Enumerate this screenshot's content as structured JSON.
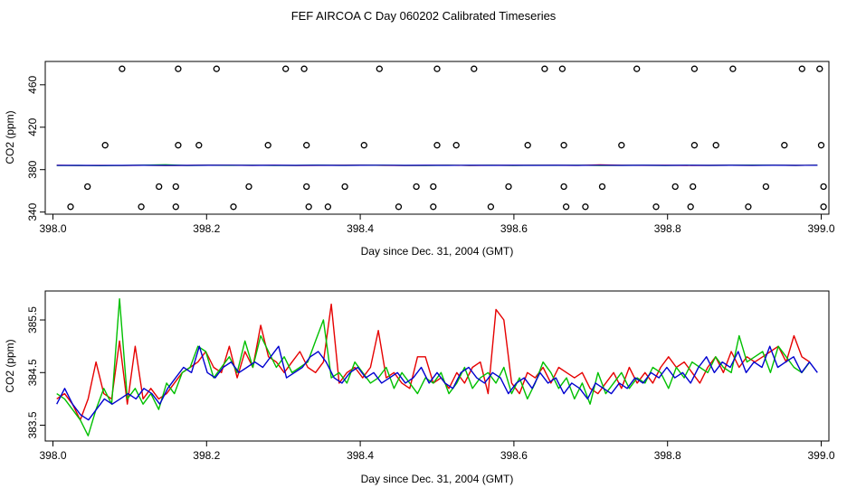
{
  "title": "FEF AIRCOA C  Day 060202  Calibrated Timeseries",
  "colors": {
    "red": "#e60000",
    "green": "#00c000",
    "blue": "#0000d0",
    "black": "#000000"
  },
  "chart_data": [
    {
      "type": "scatter",
      "xlabel": "Day since Dec. 31, 2004 (GMT)",
      "ylabel": "CO2 (ppm)",
      "xlim": [
        397.99,
        399.01
      ],
      "ylim": [
        338,
        482
      ],
      "xticks": [
        398.0,
        398.2,
        398.4,
        398.6,
        398.8,
        399.0
      ],
      "xtick_labels": [
        "398.0",
        "398.2",
        "398.4",
        "398.6",
        "398.8",
        "399.0"
      ],
      "yticks": [
        340,
        380,
        420,
        460
      ],
      "ytick_labels": [
        "340",
        "380",
        "420",
        "460"
      ],
      "points": [
        {
          "x": 398.09,
          "y": 475
        },
        {
          "x": 398.163,
          "y": 475
        },
        {
          "x": 398.213,
          "y": 475
        },
        {
          "x": 398.303,
          "y": 475
        },
        {
          "x": 398.327,
          "y": 475
        },
        {
          "x": 398.425,
          "y": 475
        },
        {
          "x": 398.5,
          "y": 475
        },
        {
          "x": 398.548,
          "y": 475
        },
        {
          "x": 398.64,
          "y": 475
        },
        {
          "x": 398.663,
          "y": 475
        },
        {
          "x": 398.76,
          "y": 475
        },
        {
          "x": 398.835,
          "y": 475
        },
        {
          "x": 398.885,
          "y": 475
        },
        {
          "x": 398.975,
          "y": 475
        },
        {
          "x": 398.998,
          "y": 475
        },
        {
          "x": 398.068,
          "y": 403
        },
        {
          "x": 398.163,
          "y": 403
        },
        {
          "x": 398.19,
          "y": 403
        },
        {
          "x": 398.28,
          "y": 403
        },
        {
          "x": 398.33,
          "y": 403
        },
        {
          "x": 398.405,
          "y": 403
        },
        {
          "x": 398.5,
          "y": 403
        },
        {
          "x": 398.525,
          "y": 403
        },
        {
          "x": 398.618,
          "y": 403
        },
        {
          "x": 398.665,
          "y": 403
        },
        {
          "x": 398.74,
          "y": 403
        },
        {
          "x": 398.835,
          "y": 403
        },
        {
          "x": 398.863,
          "y": 403
        },
        {
          "x": 398.952,
          "y": 403
        },
        {
          "x": 399.0,
          "y": 403
        },
        {
          "x": 398.045,
          "y": 364
        },
        {
          "x": 398.138,
          "y": 364
        },
        {
          "x": 398.16,
          "y": 364
        },
        {
          "x": 398.255,
          "y": 364
        },
        {
          "x": 398.33,
          "y": 364
        },
        {
          "x": 398.38,
          "y": 364
        },
        {
          "x": 398.473,
          "y": 364
        },
        {
          "x": 398.495,
          "y": 364
        },
        {
          "x": 398.593,
          "y": 364
        },
        {
          "x": 398.665,
          "y": 364
        },
        {
          "x": 398.715,
          "y": 364
        },
        {
          "x": 398.81,
          "y": 364
        },
        {
          "x": 398.833,
          "y": 364
        },
        {
          "x": 398.928,
          "y": 364
        },
        {
          "x": 399.003,
          "y": 364
        },
        {
          "x": 398.023,
          "y": 345
        },
        {
          "x": 398.115,
          "y": 345
        },
        {
          "x": 398.16,
          "y": 345
        },
        {
          "x": 398.235,
          "y": 345
        },
        {
          "x": 398.333,
          "y": 345
        },
        {
          "x": 398.358,
          "y": 345
        },
        {
          "x": 398.45,
          "y": 345
        },
        {
          "x": 398.495,
          "y": 345
        },
        {
          "x": 398.57,
          "y": 345
        },
        {
          "x": 398.668,
          "y": 345
        },
        {
          "x": 398.693,
          "y": 345
        },
        {
          "x": 398.785,
          "y": 345
        },
        {
          "x": 398.83,
          "y": 345
        },
        {
          "x": 398.905,
          "y": 345
        },
        {
          "x": 399.003,
          "y": 345
        }
      ],
      "series": [
        {
          "color": "red",
          "values": [
            384.2,
            383.9,
            384.0,
            383.8,
            384.1,
            383.9,
            384.0,
            384.3,
            384.1,
            384.0,
            384.2,
            383.9,
            384.0,
            384.1,
            384.3,
            384.0,
            383.9,
            384.0,
            384.2,
            383.9,
            384.1,
            384.0,
            384.2,
            384.1,
            384.0,
            384.6,
            384.2,
            384.0,
            384.1,
            383.9,
            384.0,
            384.1,
            384.0,
            384.2,
            384.0,
            384.1
          ]
        },
        {
          "color": "green",
          "values": [
            383.8,
            384.0,
            383.7,
            383.9,
            384.3,
            384.7,
            383.9,
            384.1,
            384.0,
            384.2,
            383.9,
            384.0,
            384.3,
            384.0,
            384.1,
            384.2,
            384.0,
            383.9,
            384.1,
            384.0,
            384.2,
            383.9,
            384.1,
            384.0,
            384.2,
            383.9,
            384.0,
            384.1,
            383.9,
            384.2,
            384.0,
            384.1,
            384.3,
            384.2,
            384.0,
            384.1
          ]
        },
        {
          "color": "blue",
          "values": [
            384.0,
            384.0,
            383.9,
            384.0,
            384.1,
            384.0,
            384.0,
            384.1,
            384.2,
            384.0,
            384.1,
            384.0,
            384.1,
            384.0,
            384.1,
            384.2,
            384.0,
            384.1,
            384.0,
            384.1,
            384.0,
            384.1,
            384.0,
            384.1,
            384.0,
            384.2,
            384.0,
            384.1,
            384.0,
            384.1,
            384.0,
            384.1,
            384.0,
            384.1,
            384.0,
            384.1
          ]
        }
      ]
    },
    {
      "type": "line",
      "xlabel": "Day since Dec. 31, 2004 (GMT)",
      "ylabel": "CO2 (ppm)",
      "xlim": [
        397.99,
        399.01
      ],
      "ylim": [
        383.2,
        386.05
      ],
      "xticks": [
        398.0,
        398.2,
        398.4,
        398.6,
        398.8,
        399.0
      ],
      "xtick_labels": [
        "398.0",
        "398.2",
        "398.4",
        "398.6",
        "398.8",
        "399.0"
      ],
      "yticks": [
        383.5,
        384.5,
        385.5
      ],
      "ytick_labels": [
        "383.5",
        "384.5",
        "385.5"
      ],
      "series": [
        {
          "color": "red",
          "x_start": 398.005,
          "x_end": 398.985,
          "values": [
            384.0,
            384.1,
            383.9,
            383.6,
            384.0,
            384.7,
            384.1,
            384.0,
            385.1,
            383.9,
            385.0,
            384.0,
            384.2,
            384.0,
            384.1,
            384.3,
            384.5,
            384.6,
            384.7,
            384.9,
            384.6,
            384.5,
            385.0,
            384.4,
            384.9,
            384.6,
            385.4,
            384.8,
            384.7,
            384.5,
            384.7,
            384.9,
            384.6,
            384.5,
            384.7,
            385.8,
            384.3,
            384.5,
            384.6,
            384.4,
            384.6,
            385.3,
            384.4,
            384.5,
            384.3,
            384.2,
            384.8,
            384.8,
            384.3,
            384.4,
            384.2,
            384.5,
            384.3,
            384.6,
            384.7,
            384.1,
            385.7,
            385.5,
            384.3,
            384.1,
            384.5,
            384.4,
            384.6,
            384.3,
            384.6,
            384.5,
            384.4,
            384.5,
            384.2,
            384.1,
            384.3,
            384.5,
            384.2,
            384.6,
            384.3,
            384.5,
            384.3,
            384.6,
            384.8,
            384.6,
            384.7,
            384.5,
            384.3,
            384.6,
            384.8,
            384.5,
            384.9,
            384.6,
            384.8,
            384.7,
            384.8,
            384.9,
            385.0,
            384.7,
            385.2,
            384.8,
            384.7
          ]
        },
        {
          "color": "green",
          "x_start": 398.005,
          "x_end": 398.985,
          "values": [
            384.1,
            384.0,
            383.8,
            383.6,
            383.3,
            383.8,
            384.2,
            383.9,
            385.9,
            384.0,
            384.2,
            383.9,
            384.1,
            383.8,
            384.3,
            384.1,
            384.5,
            384.6,
            385.0,
            384.9,
            384.4,
            384.6,
            384.8,
            384.5,
            385.1,
            384.6,
            385.2,
            384.9,
            384.6,
            384.8,
            384.5,
            384.6,
            384.7,
            385.1,
            385.5,
            384.4,
            384.5,
            384.3,
            384.7,
            384.5,
            384.3,
            384.4,
            384.6,
            384.2,
            384.5,
            384.3,
            384.1,
            384.4,
            384.3,
            384.5,
            384.1,
            384.3,
            384.6,
            384.2,
            384.4,
            384.5,
            384.3,
            384.6,
            384.1,
            384.4,
            384.0,
            384.3,
            384.7,
            384.5,
            384.2,
            384.4,
            384.0,
            384.3,
            383.9,
            384.5,
            384.1,
            384.3,
            384.5,
            384.2,
            384.4,
            384.3,
            384.6,
            384.5,
            384.2,
            384.6,
            384.4,
            384.7,
            384.6,
            384.5,
            384.8,
            384.6,
            384.5,
            385.2,
            384.7,
            384.8,
            384.9,
            384.5,
            385.0,
            384.8,
            384.6,
            384.5,
            384.7
          ]
        },
        {
          "color": "blue",
          "x_start": 398.005,
          "x_end": 398.995,
          "values": [
            383.9,
            384.2,
            383.9,
            383.7,
            383.6,
            383.8,
            384.0,
            383.9,
            384.0,
            384.1,
            384.0,
            384.2,
            384.1,
            383.9,
            384.2,
            384.4,
            384.6,
            384.5,
            385.0,
            384.5,
            384.4,
            384.6,
            384.7,
            384.5,
            384.6,
            384.7,
            384.6,
            384.8,
            385.0,
            384.4,
            384.5,
            384.6,
            384.8,
            384.9,
            384.7,
            384.4,
            384.3,
            384.5,
            384.6,
            384.4,
            384.5,
            384.3,
            384.4,
            384.5,
            384.3,
            384.4,
            384.6,
            384.3,
            384.5,
            384.3,
            384.2,
            384.5,
            384.6,
            384.4,
            384.3,
            384.5,
            384.4,
            384.1,
            384.3,
            384.4,
            384.2,
            384.5,
            384.3,
            384.4,
            384.1,
            384.3,
            384.2,
            384.0,
            384.3,
            384.2,
            384.1,
            384.3,
            384.2,
            384.4,
            384.3,
            384.5,
            384.4,
            384.6,
            384.4,
            384.5,
            384.3,
            384.6,
            384.8,
            384.5,
            384.7,
            384.6,
            384.9,
            384.5,
            384.7,
            384.6,
            385.0,
            384.6,
            384.7,
            384.8,
            384.5,
            384.7,
            384.5
          ]
        }
      ]
    }
  ]
}
